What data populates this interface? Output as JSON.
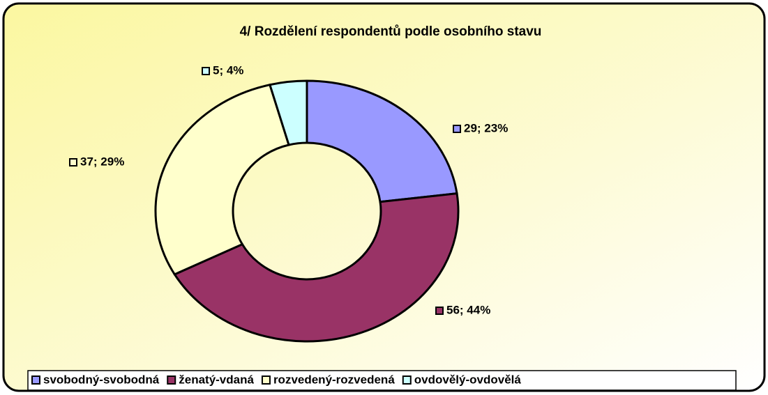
{
  "chart_data": {
    "type": "donut",
    "title": "4/ Rozdělení respondentů podle osobního stavu",
    "categories": [
      "svobodný-svobodná",
      "ženatý-vdaná",
      "rozvedený-rozvedená",
      "ovdovělý-ovdovělá"
    ],
    "values": [
      29,
      56,
      37,
      5
    ],
    "value_labels": [
      "29; 23%",
      "56; 44%",
      "37; 29%",
      "5; 4%"
    ],
    "colors": [
      "#9999ff",
      "#993366",
      "#ffffcc",
      "#ccffff"
    ],
    "legend": "bottom"
  }
}
